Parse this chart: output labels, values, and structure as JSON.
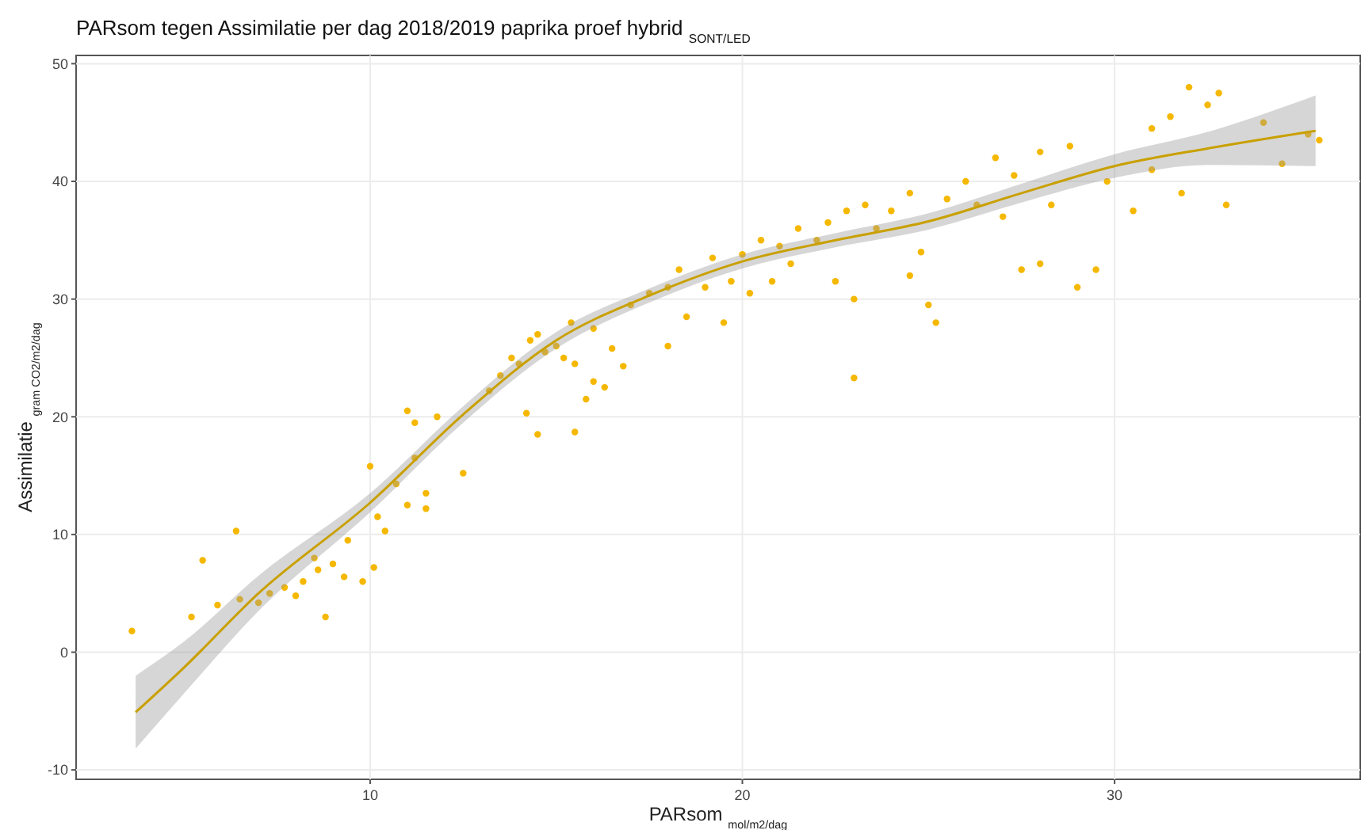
{
  "chart_data": {
    "type": "scatter",
    "title": "PARsom tegen Assimilatie per dag 2018/2019 paprika proef hybrid $_{SONT/LED}$",
    "xlabel": "PARsom $_{mol/m2/dag}$",
    "ylabel": "Assimilatie $_{gram CO2/m2/dag}$",
    "xlim": [
      2.1,
      36.6
    ],
    "ylim": [
      -10.8,
      50.7
    ],
    "xticks": [
      10,
      20,
      30
    ],
    "yticks": [
      -10,
      0,
      10,
      20,
      30,
      40,
      50
    ],
    "grid": true,
    "series": [
      {
        "marker": "circle",
        "color": "#f5b800",
        "x": [
          3.6,
          5.2,
          5.5,
          6.4,
          5.9,
          6.5,
          7,
          7.3,
          7.7,
          8,
          8.2,
          8.5,
          8.6,
          8.8,
          9,
          9.3,
          9.4,
          9.8,
          10,
          10.1,
          10.2,
          10.4,
          10.7,
          11,
          11,
          11.2,
          11.2,
          11.5,
          11.5,
          11.8,
          12.5,
          13.2,
          13.5,
          13.8,
          14,
          14.2,
          14.3,
          14.5,
          14.7,
          14.5,
          15,
          15.2,
          15.4,
          15.5,
          15.8,
          15.5,
          16,
          16.3,
          16.5,
          16.8,
          16,
          17,
          17.5,
          18,
          18,
          18.3,
          18.5,
          19,
          19.2,
          19.5,
          19.7,
          20,
          20.2,
          20.5,
          20.8,
          21,
          21.3,
          21.5,
          22,
          22.3,
          22.8,
          22.5,
          23,
          23,
          23.3,
          23.6,
          24,
          24.5,
          24.5,
          24.8,
          25,
          25.2,
          25.5,
          26,
          26.3,
          26.8,
          27,
          27.3,
          27.5,
          28,
          28,
          28.3,
          28.8,
          29,
          29.5,
          29.8,
          30.5,
          31,
          31,
          31.5,
          31.8,
          32,
          32.5,
          32.8,
          33,
          34,
          34.5,
          35.5,
          35.2
        ],
        "values": [
          1.8,
          3,
          7.8,
          10.3,
          4,
          4.5,
          4.2,
          5,
          5.5,
          4.8,
          6,
          8,
          7,
          3,
          7.5,
          6.4,
          9.5,
          6,
          15.8,
          7.2,
          11.5,
          10.3,
          14.3,
          20.5,
          12.5,
          19.5,
          16.5,
          13.5,
          12.2,
          20,
          15.2,
          22.2,
          23.5,
          25,
          24.5,
          20.3,
          26.5,
          27,
          25.5,
          18.5,
          26,
          25,
          28,
          18.7,
          21.5,
          24.5,
          23,
          22.5,
          25.8,
          24.3,
          27.5,
          29.5,
          30.5,
          31,
          26,
          32.5,
          28.5,
          31,
          33.5,
          28,
          31.5,
          33.8,
          30.5,
          35,
          31.5,
          34.5,
          33,
          36,
          35,
          36.5,
          37.5,
          31.5,
          30,
          23.3,
          38,
          36,
          37.5,
          39,
          32,
          34,
          29.5,
          28,
          38.5,
          40,
          38,
          42,
          37,
          40.5,
          32.5,
          33,
          42.5,
          38,
          43,
          31,
          32.5,
          40,
          37.5,
          41,
          44.5,
          45.5,
          39,
          48,
          46.5,
          47.5,
          38,
          45,
          41.5,
          43.5,
          44
        ]
      },
      {
        "type": "line",
        "color": "#c9a000",
        "x": [
          3.7,
          5,
          7,
          10,
          12.5,
          15,
          17.5,
          20,
          22.5,
          25,
          27.5,
          30,
          32.5,
          35.4
        ],
        "values": [
          -5.1,
          -1.3,
          5,
          12.7,
          20.2,
          26.5,
          30.3,
          33.2,
          35,
          36.6,
          39,
          41.3,
          42.8,
          44.3
        ],
        "lower": [
          -8.2,
          -3.5,
          3.5,
          11.9,
          19.5,
          25.8,
          29.7,
          32.6,
          34.4,
          35.9,
          38.2,
          40.3,
          41.4,
          41.3
        ],
        "upper": [
          -2,
          0.9,
          6.5,
          13.5,
          20.9,
          27.2,
          30.9,
          33.8,
          35.6,
          37.3,
          39.8,
          42.3,
          44.2,
          47.3
        ]
      }
    ]
  }
}
